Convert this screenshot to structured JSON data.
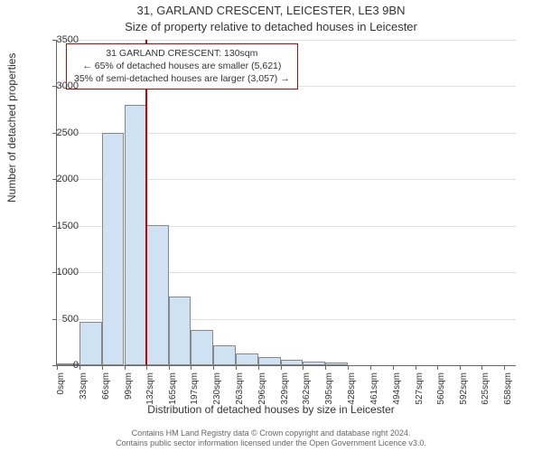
{
  "title_main": "31, GARLAND CRESCENT, LEICESTER, LE3 9BN",
  "title_sub": "Size of property relative to detached houses in Leicester",
  "y_axis_label": "Number of detached properties",
  "x_axis_label": "Distribution of detached houses by size in Leicester",
  "attribution_line1": "Contains HM Land Registry data © Crown copyright and database right 2024.",
  "attribution_line2": "Contains public sector information licensed under the Open Government Licence v3.0.",
  "chart": {
    "type": "histogram",
    "background_color": "#ffffff",
    "grid_color": "#e0e0e0",
    "axis_color": "#666666",
    "bar_fill": "#cfe2f3",
    "bar_border": "#888888",
    "ref_line_color": "#cc0000",
    "ref_line_value": 130,
    "annotation_border": "#cc0000",
    "annotation_bg": "#ffffff",
    "y_ticks": [
      0,
      500,
      1000,
      1500,
      2000,
      2500,
      3000,
      3500
    ],
    "y_min": 0,
    "y_max": 3500,
    "x_min": 0,
    "x_max": 675,
    "x_ticks": [
      0,
      33,
      66,
      99,
      132,
      165,
      197,
      230,
      263,
      296,
      329,
      362,
      395,
      428,
      461,
      494,
      527,
      560,
      592,
      625,
      658
    ],
    "x_tick_unit": "sqm",
    "bars": [
      {
        "x0": 0,
        "x1": 33,
        "v": 10
      },
      {
        "x0": 33,
        "x1": 66,
        "v": 470
      },
      {
        "x0": 66,
        "x1": 99,
        "v": 2500
      },
      {
        "x0": 99,
        "x1": 132,
        "v": 2800
      },
      {
        "x0": 132,
        "x1": 165,
        "v": 1510
      },
      {
        "x0": 165,
        "x1": 197,
        "v": 740
      },
      {
        "x0": 197,
        "x1": 230,
        "v": 380
      },
      {
        "x0": 230,
        "x1": 263,
        "v": 210
      },
      {
        "x0": 263,
        "x1": 296,
        "v": 130
      },
      {
        "x0": 296,
        "x1": 329,
        "v": 85
      },
      {
        "x0": 329,
        "x1": 362,
        "v": 60
      },
      {
        "x0": 362,
        "x1": 395,
        "v": 40
      },
      {
        "x0": 395,
        "x1": 428,
        "v": 30
      },
      {
        "x0": 428,
        "x1": 461,
        "v": 0
      },
      {
        "x0": 461,
        "x1": 494,
        "v": 0
      },
      {
        "x0": 494,
        "x1": 527,
        "v": 0
      },
      {
        "x0": 527,
        "x1": 560,
        "v": 0
      },
      {
        "x0": 560,
        "x1": 592,
        "v": 0
      },
      {
        "x0": 592,
        "x1": 625,
        "v": 0
      },
      {
        "x0": 625,
        "x1": 658,
        "v": 0
      }
    ]
  },
  "annotation": {
    "line1": "31 GARLAND CRESCENT: 130sqm",
    "line2": "← 65% of detached houses are smaller (5,621)",
    "line3": "35% of semi-detached houses are larger (3,057) →"
  }
}
